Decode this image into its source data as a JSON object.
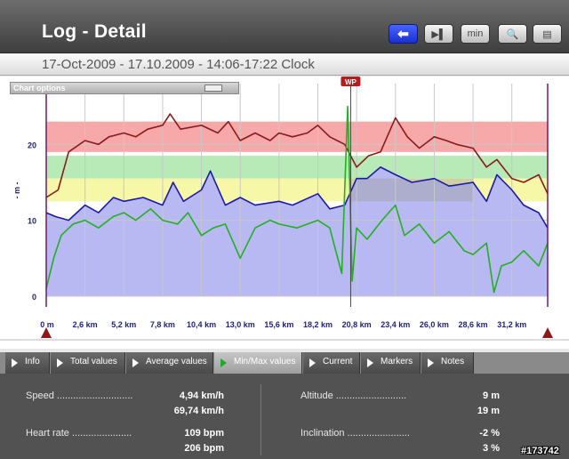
{
  "header": {
    "title": "Log - Detail",
    "buttons": [
      {
        "name": "back-button",
        "icon": "back-arrow-icon",
        "label": "⬅"
      },
      {
        "name": "marker-button",
        "icon": "flag-icon",
        "label": "▶▌"
      },
      {
        "name": "time-scale-button",
        "icon": "min-scale-icon",
        "label": "min"
      },
      {
        "name": "zoom-button",
        "icon": "magnifier-icon",
        "label": "🔍"
      },
      {
        "name": "print-button",
        "icon": "printer-icon",
        "label": "▤"
      }
    ]
  },
  "date_range": "17-Oct-2009 - 17.10.2009 - 14:06-17:22 Clock",
  "chart_options": {
    "label": "Chart options"
  },
  "chart_data": {
    "type": "line",
    "ylabel": "- m -",
    "y_ticks": [
      0,
      10,
      20
    ],
    "ylim": [
      0,
      28
    ],
    "x_ticks": [
      "0 m",
      "2,6 km",
      "5,2 km",
      "7,8 km",
      "10,4 km",
      "13,0 km",
      "15,6 km",
      "18,2 km",
      "20,8 km",
      "23,4 km",
      "26,0 km",
      "28,6 km",
      "31,2 km"
    ],
    "xlim_km": [
      0,
      33.6
    ],
    "marker_label": "WP",
    "marker_km": 20.4,
    "zones": [
      {
        "from": 19,
        "to": 23,
        "color": "#f7a9a9"
      },
      {
        "from": 15.5,
        "to": 18.5,
        "color": "#b7eab7"
      },
      {
        "from": 12.5,
        "to": 15.5,
        "color": "#f7f7a8"
      }
    ],
    "series": [
      {
        "color": "#8b1a1a",
        "x": [
          0,
          0.8,
          1.5,
          2.6,
          3.5,
          4.2,
          5.2,
          6.0,
          6.8,
          7.8,
          8.3,
          9.0,
          10.4,
          11.5,
          12.2,
          13.0,
          14.0,
          15.0,
          15.6,
          16.5,
          17.5,
          18.2,
          19.0,
          20.0,
          20.8,
          21.6,
          22.4,
          23.4,
          24.2,
          25.0,
          26.0,
          26.8,
          27.5,
          28.6,
          29.5,
          30.2,
          31.2,
          32.0,
          33.0,
          33.6
        ],
        "values": [
          13,
          14,
          19,
          20.5,
          20,
          21,
          21.5,
          21,
          22,
          22.5,
          24,
          22,
          22.5,
          21.5,
          23,
          20.5,
          21.5,
          20.5,
          21.5,
          21,
          21.5,
          22.5,
          21,
          20,
          17,
          18.5,
          19,
          23.5,
          21,
          19.5,
          21,
          20.5,
          20,
          19.5,
          17,
          18,
          15.5,
          15,
          16,
          13.5
        ]
      },
      {
        "color": "#1a1aa8",
        "x": [
          0,
          0.6,
          1.5,
          2.6,
          3.5,
          4.5,
          5.2,
          6.5,
          7.8,
          8.5,
          9.2,
          10.4,
          11.0,
          12.0,
          13.0,
          14.0,
          15.6,
          16.5,
          18.2,
          19.0,
          20.0,
          20.8,
          21.5,
          22.4,
          23.4,
          24.5,
          26.0,
          27.0,
          28.6,
          29.5,
          30.2,
          31.2,
          32.0,
          33.0,
          33.6
        ],
        "values": [
          11,
          10.5,
          10,
          12,
          11,
          13,
          12.5,
          13,
          12,
          15,
          12.5,
          14,
          16.5,
          12,
          13,
          12,
          12.5,
          12,
          13.5,
          11.5,
          12,
          15.5,
          15.5,
          17,
          16,
          15,
          15.5,
          14.5,
          15,
          12.5,
          16,
          14,
          12,
          11,
          9
        ]
      },
      {
        "color": "#22b022",
        "x": [
          0,
          0.5,
          1.0,
          1.8,
          2.6,
          3.5,
          4.5,
          5.2,
          6.0,
          7.0,
          7.8,
          8.8,
          9.5,
          10.4,
          11.2,
          12.0,
          13.0,
          14.0,
          15.0,
          15.6,
          16.8,
          18.2,
          19.0,
          19.8,
          20.2,
          20.5,
          20.8,
          21.5,
          22.5,
          23.4,
          24.0,
          25.0,
          26.0,
          27.0,
          28.0,
          28.6,
          29.5,
          30.0,
          30.5,
          31.2,
          32.0,
          33.0,
          33.6
        ],
        "values": [
          1,
          5,
          8,
          9.5,
          10,
          9,
          10.5,
          11,
          10,
          11.5,
          10,
          9.5,
          11,
          8,
          9,
          9.5,
          5,
          9,
          10,
          9.5,
          9,
          10,
          9,
          3,
          25,
          2,
          9,
          7.5,
          10,
          12,
          8,
          9.5,
          7,
          8.5,
          6,
          5.5,
          7,
          0.5,
          4,
          4.5,
          6,
          4,
          7
        ]
      }
    ]
  },
  "tabs": [
    {
      "label": "Info",
      "active": false
    },
    {
      "label": "Total values",
      "active": false
    },
    {
      "label": "Average values",
      "active": false
    },
    {
      "label": "Min/Max values",
      "active": true
    },
    {
      "label": "Current",
      "active": false
    },
    {
      "label": "Markers",
      "active": false
    },
    {
      "label": "Notes",
      "active": false
    }
  ],
  "stats": {
    "speed": {
      "label": "Speed ............................",
      "min": "4,94 km/h",
      "max": "69,74 km/h"
    },
    "heart_rate": {
      "label": "Heart rate ......................",
      "min": "109 bpm",
      "max": "206 bpm"
    },
    "altitude": {
      "label": "Altitude ..........................",
      "min": "9 m",
      "max": "19 m"
    },
    "inclination": {
      "label": "Inclination .......................",
      "min": "-2 %",
      "max": "3 %"
    }
  },
  "watermark": "#173742"
}
